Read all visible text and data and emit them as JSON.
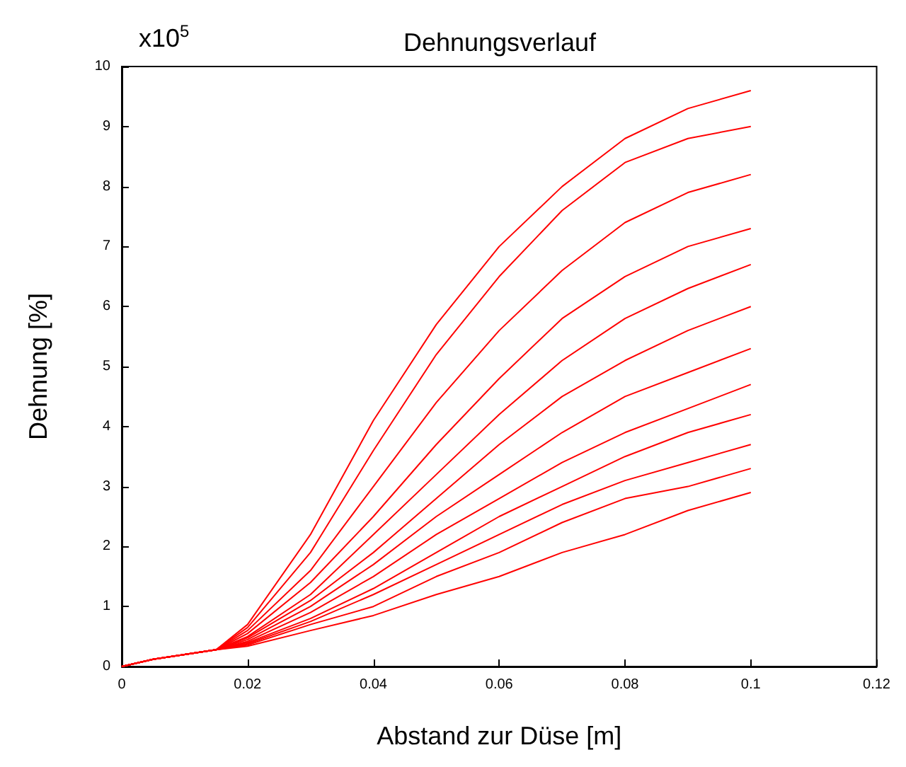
{
  "chart_data": {
    "type": "line",
    "title": "Dehnungsverlauf",
    "xlabel": "Abstand zur Düse [m]",
    "ylabel": "Dehnung [%]",
    "annotations": [
      "x10$^{5}$"
    ],
    "x": [
      0,
      0.005,
      0.01,
      0.015,
      0.02,
      0.03,
      0.04,
      0.05,
      0.06,
      0.07,
      0.08,
      0.09,
      0.1
    ],
    "series": [
      {
        "color": "#ff0000",
        "values": [
          0,
          0.12,
          0.2,
          0.28,
          0.7,
          2.2,
          4.1,
          5.7,
          7.0,
          8.0,
          8.8,
          9.3,
          9.6
        ]
      },
      {
        "color": "#ff0000",
        "values": [
          0,
          0.12,
          0.2,
          0.28,
          0.65,
          1.9,
          3.6,
          5.2,
          6.5,
          7.6,
          8.4,
          8.8,
          9.0
        ]
      },
      {
        "color": "#ff0000",
        "values": [
          0,
          0.12,
          0.2,
          0.28,
          0.6,
          1.6,
          3.0,
          4.4,
          5.6,
          6.6,
          7.4,
          7.9,
          8.2
        ]
      },
      {
        "color": "#ff0000",
        "values": [
          0,
          0.12,
          0.2,
          0.28,
          0.55,
          1.4,
          2.5,
          3.7,
          4.8,
          5.8,
          6.5,
          7.0,
          7.3
        ]
      },
      {
        "color": "#ff0000",
        "values": [
          0,
          0.12,
          0.2,
          0.28,
          0.5,
          1.2,
          2.2,
          3.2,
          4.2,
          5.1,
          5.8,
          6.3,
          6.7
        ]
      },
      {
        "color": "#ff0000",
        "values": [
          0,
          0.12,
          0.2,
          0.28,
          0.48,
          1.1,
          1.9,
          2.8,
          3.7,
          4.5,
          5.1,
          5.6,
          6.0
        ]
      },
      {
        "color": "#ff0000",
        "values": [
          0,
          0.12,
          0.2,
          0.28,
          0.45,
          1.0,
          1.7,
          2.5,
          3.2,
          3.9,
          4.5,
          4.9,
          5.3
        ]
      },
      {
        "color": "#ff0000",
        "values": [
          0,
          0.12,
          0.2,
          0.28,
          0.42,
          0.9,
          1.5,
          2.2,
          2.8,
          3.4,
          3.9,
          4.3,
          4.7
        ]
      },
      {
        "color": "#ff0000",
        "values": [
          0,
          0.12,
          0.2,
          0.28,
          0.4,
          0.8,
          1.3,
          1.9,
          2.5,
          3.0,
          3.5,
          3.9,
          4.2
        ]
      },
      {
        "color": "#ff0000",
        "values": [
          0,
          0.12,
          0.2,
          0.28,
          0.38,
          0.75,
          1.2,
          1.7,
          2.2,
          2.7,
          3.1,
          3.4,
          3.7
        ]
      },
      {
        "color": "#ff0000",
        "values": [
          0,
          0.12,
          0.2,
          0.28,
          0.36,
          0.7,
          1.0,
          1.5,
          1.9,
          2.4,
          2.8,
          3.0,
          3.3
        ]
      },
      {
        "color": "#ff0000",
        "values": [
          0,
          0.12,
          0.2,
          0.28,
          0.34,
          0.6,
          0.85,
          1.2,
          1.5,
          1.9,
          2.2,
          2.6,
          2.9
        ]
      }
    ],
    "xlim": [
      0,
      0.12
    ],
    "xticks": [
      0,
      0.02,
      0.04,
      0.06,
      0.08,
      0.1,
      0.12
    ],
    "ylim": [
      0,
      10
    ],
    "yticks": [
      0,
      1,
      2,
      3,
      4,
      5,
      6,
      7,
      8,
      9,
      10
    ],
    "grid": false,
    "marker": "none"
  }
}
